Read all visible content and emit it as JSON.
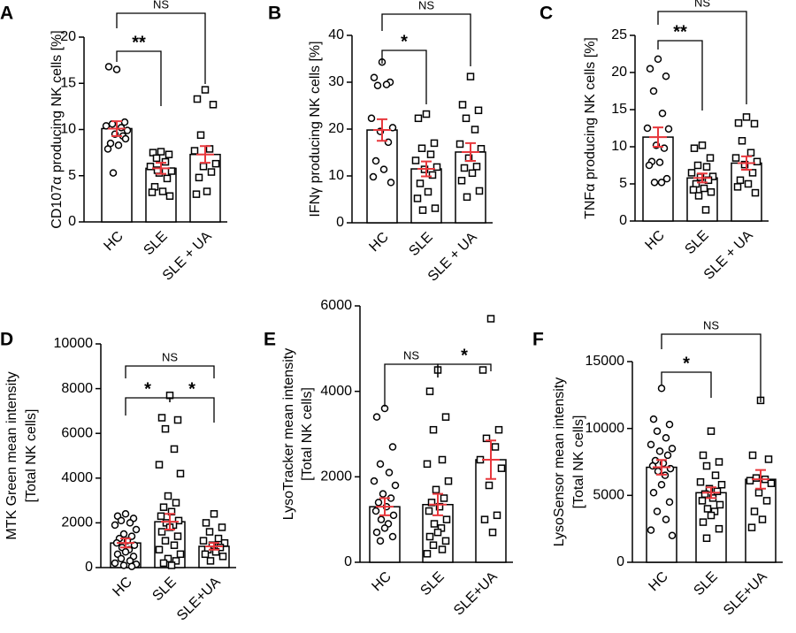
{
  "chart_data": [
    {
      "type": "bar",
      "panel": "A",
      "ylabel": [
        "CD107α producing NK cells [%]"
      ],
      "categories": [
        "HC",
        "SLE",
        "SLE + UA"
      ],
      "values": [
        10.1,
        5.8,
        7.3
      ],
      "errors": [
        0.8,
        0.6,
        0.9
      ],
      "markers": [
        "circle",
        "square",
        "square"
      ],
      "bar_color": "#ffffff",
      "error_color": "#e8383d",
      "points": [
        [
          16.5,
          16.8,
          10.8,
          10.6,
          10.2,
          10.4,
          9.9,
          9.5,
          9.3,
          8.5,
          8.3,
          7.9,
          9.0,
          5.3
        ],
        [
          7.6,
          7.5,
          7.3,
          6.9,
          6.5,
          6.0,
          5.5,
          5.3,
          4.7,
          3.8,
          3.3,
          3.2,
          2.8,
          5.6
        ],
        [
          14.3,
          13.3,
          12.7,
          9.4,
          7.9,
          7.7,
          6.3,
          6.0,
          5.4,
          4.8,
          3.3,
          3.0
        ]
      ],
      "ylim": [
        0,
        20
      ],
      "yticks": [
        0,
        5,
        10,
        15,
        20
      ],
      "comparisons": [
        "**",
        "NS"
      ]
    },
    {
      "type": "bar",
      "panel": "B",
      "ylabel": [
        "IFNγ producing NK cells [%]"
      ],
      "categories": [
        "HC",
        "SLE",
        "SLE + UA"
      ],
      "values": [
        19.8,
        11.5,
        15.1
      ],
      "errors": [
        2.3,
        1.6,
        1.9
      ],
      "markers": [
        "circle",
        "square",
        "square"
      ],
      "bar_color": "#ffffff",
      "error_color": "#e8383d",
      "points": [
        [
          34.3,
          31.0,
          30.0,
          29.3,
          29.5,
          22.3,
          20.3,
          19.5,
          17.2,
          13.2,
          11.4,
          9.8,
          8.6
        ],
        [
          23.2,
          22.3,
          17.0,
          15.9,
          14.6,
          13.3,
          11.9,
          11.4,
          10.2,
          8.4,
          6.6,
          5.2,
          3.1,
          2.7
        ],
        [
          31.2,
          25.2,
          24.0,
          22.3,
          19.9,
          16.8,
          15.8,
          13.8,
          12.0,
          11.7,
          10.6,
          9.0,
          6.8,
          5.5
        ]
      ],
      "ylim": [
        0,
        40
      ],
      "yticks": [
        0,
        10,
        20,
        30,
        40
      ],
      "comparisons": [
        "*",
        "NS"
      ]
    },
    {
      "type": "bar",
      "panel": "C",
      "ylabel": [
        "TNFα producing NK cells [%]"
      ],
      "categories": [
        "HC",
        "SLE",
        "SLE + UA"
      ],
      "values": [
        11.3,
        5.8,
        7.8
      ],
      "errors": [
        1.3,
        0.6,
        0.9
      ],
      "markers": [
        "circle",
        "square",
        "square"
      ],
      "bar_color": "#ffffff",
      "error_color": "#e8383d",
      "points": [
        [
          21.8,
          20.5,
          19.5,
          17.5,
          14.5,
          12.5,
          12.4,
          10.2,
          9.8,
          8.0,
          7.9,
          7.5,
          5.7,
          5.2,
          5.2
        ],
        [
          10.2,
          9.8,
          8.5,
          7.5,
          7.3,
          6.5,
          6.0,
          5.9,
          5.5,
          5.0,
          4.4,
          4.2,
          3.9,
          3.4,
          1.5
        ],
        [
          14.0,
          13.2,
          13.1,
          10.8,
          9.2,
          8.5,
          8.0,
          7.6,
          6.5,
          5.5,
          5.0,
          4.6,
          3.8
        ]
      ],
      "ylim": [
        0,
        25
      ],
      "yticks": [
        0,
        5,
        10,
        15,
        20,
        25
      ],
      "comparisons": [
        "**",
        "NS"
      ]
    },
    {
      "type": "bar",
      "panel": "D",
      "ylabel": [
        "MTK Green mean intensity",
        "[Total NK cells]"
      ],
      "categories": [
        "HC",
        "SLE",
        "SLE+UA"
      ],
      "values": [
        1100,
        2050,
        950
      ],
      "errors": [
        200,
        350,
        150
      ],
      "markers": [
        "circle",
        "square",
        "square"
      ],
      "bar_color": "#ffffff",
      "error_color": "#e8383d",
      "points": [
        [
          2400,
          2300,
          2200,
          2100,
          2000,
          1900,
          1700,
          1500,
          1400,
          1300,
          1200,
          1100,
          1000,
          900,
          800,
          700,
          600,
          500,
          400,
          300,
          200,
          150,
          100,
          50
        ],
        [
          7700,
          6700,
          6600,
          6200,
          5300,
          4600,
          4200,
          3200,
          2900,
          2700,
          2500,
          2300,
          2100,
          2000,
          1900,
          1800,
          1600,
          1400,
          1200,
          1000,
          800,
          600,
          400,
          300,
          200,
          100
        ],
        [
          2400,
          2000,
          1800,
          1600,
          1300,
          1200,
          1100,
          1000,
          900,
          800,
          700,
          600,
          500,
          300
        ]
      ],
      "ylim": [
        0,
        10000
      ],
      "yticks": [
        0,
        2000,
        4000,
        6000,
        8000,
        10000
      ],
      "comparisons": [
        "*",
        "*",
        "NS"
      ]
    },
    {
      "type": "bar",
      "panel": "E",
      "ylabel": [
        "LysoTracker mean intensity",
        "[Total NK cells]"
      ],
      "categories": [
        "HC",
        "SLE",
        "SLE+UA"
      ],
      "values": [
        1300,
        1350,
        2400
      ],
      "errors": [
        200,
        250,
        450
      ],
      "markers": [
        "circle",
        "square",
        "square"
      ],
      "bar_color": "#ffffff",
      "error_color": "#e8383d",
      "points": [
        [
          3600,
          3400,
          2700,
          2300,
          2100,
          1900,
          1800,
          1600,
          1500,
          1400,
          1300,
          1200,
          1100,
          1000,
          900,
          800,
          700,
          600,
          500
        ],
        [
          4500,
          4000,
          3400,
          3100,
          2400,
          2300,
          1900,
          1700,
          1500,
          1400,
          1300,
          1200,
          1000,
          900,
          800,
          700,
          600,
          500,
          400,
          300,
          200
        ],
        [
          5700,
          4500,
          3100,
          2900,
          2700,
          2400,
          2200,
          1800,
          1100,
          1000,
          700
        ]
      ],
      "ylim": [
        0,
        6000
      ],
      "yticks": [
        0,
        2000,
        4000,
        6000
      ],
      "comparisons": [
        "NS",
        "*"
      ]
    },
    {
      "type": "bar",
      "panel": "F",
      "ylabel": [
        "LysoSensor mean intensity",
        "[Total NK cells]"
      ],
      "categories": [
        "HC",
        "SLE",
        "SLE+UA"
      ],
      "values": [
        7100,
        5200,
        6200
      ],
      "errors": [
        550,
        400,
        700
      ],
      "markers": [
        "circle",
        "square",
        "square"
      ],
      "bar_color": "#ffffff",
      "error_color": "#e8383d",
      "points": [
        [
          13000,
          10700,
          10300,
          9800,
          9300,
          8800,
          8500,
          8300,
          8000,
          7600,
          7400,
          7200,
          7000,
          6800,
          6500,
          5800,
          5200,
          4500,
          3800,
          3200,
          2400,
          2000
        ],
        [
          9800,
          8000,
          7500,
          7200,
          6500,
          6000,
          5800,
          5500,
          5300,
          5100,
          4800,
          4600,
          4300,
          4000,
          3800,
          3500,
          3000,
          2500,
          1800
        ],
        [
          12100,
          8000,
          7700,
          6300,
          6200,
          6100,
          5900,
          5200,
          4600,
          3800,
          3200,
          2600
        ]
      ],
      "ylim": [
        0,
        15000
      ],
      "yticks": [
        0,
        5000,
        10000,
        15000
      ],
      "comparisons": [
        "*",
        "NS"
      ]
    }
  ]
}
